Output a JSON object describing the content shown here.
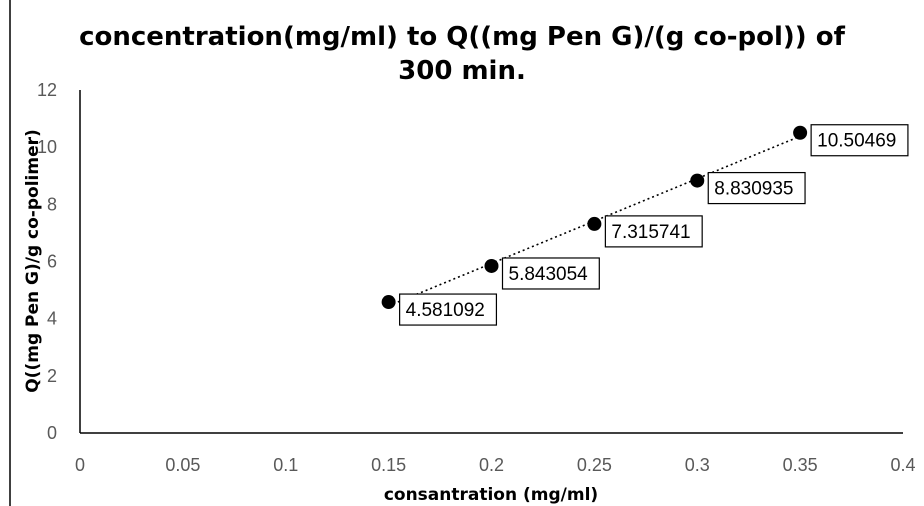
{
  "chart_data": {
    "type": "scatter",
    "title_lines": [
      "concentration(mg/ml) to Q((mg Pen G)/(g co-pol)) of",
      "300 min."
    ],
    "xlabel": "consantration (mg/ml)",
    "ylabel": "Q((mg Pen G)/g co-polimer)",
    "xlim": [
      0,
      0.4
    ],
    "ylim": [
      0,
      12
    ],
    "x_ticks": [
      "0",
      "0.05",
      "0.1",
      "0.15",
      "0.2",
      "0.25",
      "0.3",
      "0.35",
      "0.4"
    ],
    "y_ticks": [
      "0",
      "2",
      "4",
      "6",
      "8",
      "10",
      "12"
    ],
    "grid": false,
    "trendline": "dotted linear",
    "series": [
      {
        "points": [
          {
            "x": 0.15,
            "y": 4.581092,
            "label": "4.581092"
          },
          {
            "x": 0.2,
            "y": 5.843054,
            "label": "5.843054"
          },
          {
            "x": 0.25,
            "y": 7.315741,
            "label": "7.315741"
          },
          {
            "x": 0.3,
            "y": 8.830935,
            "label": "8.830935"
          },
          {
            "x": 0.35,
            "y": 10.50469,
            "label": "10.50469"
          }
        ]
      }
    ],
    "colors": {
      "marker": "#000000",
      "axis": "#000000",
      "tick_text": "#595959",
      "label_border": "#000000"
    }
  }
}
